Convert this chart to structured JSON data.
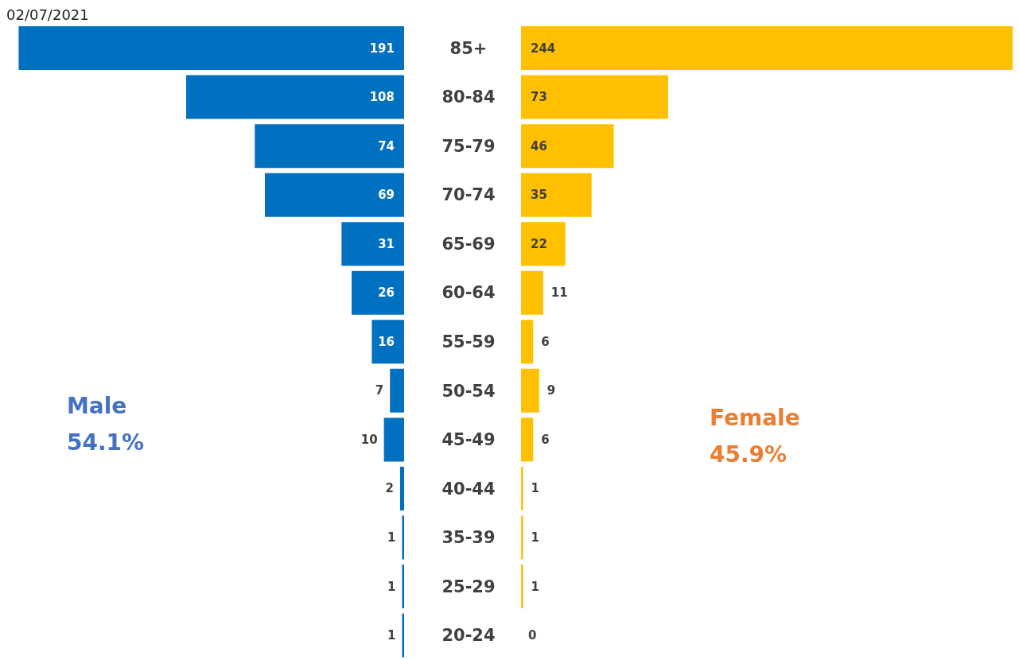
{
  "chart_data": [
    {
      "type": "bar",
      "orientation": "horizontal",
      "title": "02/07/2021",
      "categories": [
        "85+",
        "80-84",
        "75-79",
        "70-74",
        "65-69",
        "60-64",
        "55-59",
        "50-54",
        "45-49",
        "40-44",
        "35-39",
        "25-29",
        "20-24"
      ],
      "series": [
        {
          "name": "Male",
          "color": "#0070c0",
          "values": [
            191,
            108,
            74,
            69,
            31,
            26,
            16,
            7,
            10,
            2,
            1,
            1,
            1
          ]
        }
      ],
      "annotations": [
        "54.1%"
      ],
      "data_labels": true
    },
    {
      "type": "bar",
      "orientation": "horizontal",
      "categories": [
        null,
        null,
        null,
        null,
        null,
        null,
        null,
        null,
        null,
        null,
        null,
        null,
        null
      ],
      "series": [
        {
          "name": "Female",
          "color": "#ffc000",
          "values": [
            244,
            73,
            46,
            35,
            22,
            11,
            6,
            9,
            6,
            1,
            1,
            1,
            0
          ]
        }
      ],
      "annotations": [
        "45.9%"
      ],
      "data_labels": true
    }
  ]
}
